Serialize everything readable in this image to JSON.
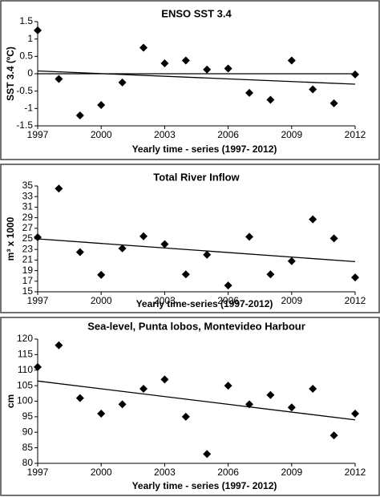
{
  "chart_data": [
    {
      "type": "scatter",
      "title": "ENSO SST 3.4",
      "ylabel": "SST 3.4 (ºC)",
      "xlabel": "Yearly time - series (1997- 2012)",
      "x": [
        1997,
        1998,
        1999,
        2000,
        2001,
        2002,
        2003,
        2004,
        2005,
        2006,
        2007,
        2008,
        2009,
        2010,
        2011,
        2012
      ],
      "series": [
        {
          "color": "#000000",
          "values": [
            1.25,
            -0.15,
            -1.2,
            -0.9,
            -0.25,
            0.75,
            0.3,
            0.38,
            0.12,
            0.15,
            -0.55,
            -0.75,
            0.38,
            -0.45,
            -0.85,
            -0.02
          ]
        }
      ],
      "trend": {
        "x": [
          1997,
          2012
        ],
        "values": [
          0.08,
          -0.3
        ]
      },
      "hline": 0,
      "xlim": [
        1997,
        2012
      ],
      "xticks": [
        1997,
        2000,
        2003,
        2006,
        2009,
        2012
      ],
      "ylim": [
        -1.5,
        1.5
      ],
      "yticks": [
        -1.5,
        -1,
        -0.5,
        0,
        0.5,
        1,
        1.5
      ]
    },
    {
      "type": "scatter",
      "title": "Total River Inflow",
      "ylabel": "m³ x 1000",
      "xlabel": "Yearly time-series (1997-2012)",
      "x": [
        1997,
        1998,
        1999,
        2000,
        2001,
        2002,
        2003,
        2004,
        2005,
        2006,
        2007,
        2008,
        2009,
        2010,
        2011,
        2012
      ],
      "series": [
        {
          "color": "#000000",
          "values": [
            25.3,
            34.5,
            22.5,
            18.2,
            23.2,
            25.5,
            24,
            18.3,
            22,
            16.2,
            25.4,
            18.3,
            20.8,
            28.7,
            25.1,
            17.7
          ]
        }
      ],
      "trend": {
        "x": [
          1997,
          2012
        ],
        "values": [
          25,
          20.7
        ]
      },
      "xlim": [
        1997,
        2012
      ],
      "xticks": [
        1997,
        2000,
        2003,
        2006,
        2009,
        2012
      ],
      "ylim": [
        15,
        35
      ],
      "yticks": [
        15,
        17,
        19,
        21,
        23,
        25,
        27,
        29,
        31,
        33,
        35
      ]
    },
    {
      "type": "scatter",
      "title": "Sea-level, Punta lobos, Montevideo Harbour",
      "ylabel": "cm",
      "xlabel": "Yearly time - series (1997- 2012)",
      "x": [
        1997,
        1998,
        1999,
        2000,
        2001,
        2002,
        2003,
        2004,
        2005,
        2006,
        2007,
        2008,
        2009,
        2010,
        2011,
        2012
      ],
      "series": [
        {
          "color": "#000000",
          "values": [
            111,
            118,
            101,
            96,
            99,
            104,
            107,
            95,
            83,
            105,
            99,
            102,
            98,
            104,
            89,
            96
          ]
        }
      ],
      "trend": {
        "x": [
          1997,
          2012
        ],
        "values": [
          106.5,
          94
        ]
      },
      "xlim": [
        1997,
        2012
      ],
      "xticks": [
        1997,
        2000,
        2003,
        2006,
        2009,
        2012
      ],
      "ylim": [
        80,
        120
      ],
      "yticks": [
        80,
        85,
        90,
        95,
        100,
        105,
        110,
        115,
        120
      ]
    }
  ]
}
